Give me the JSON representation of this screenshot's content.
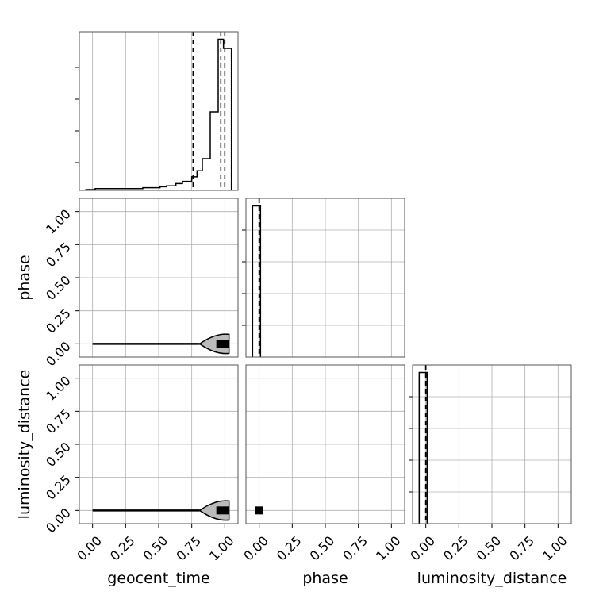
{
  "chart_data": {
    "type": "corner",
    "parameters": [
      "geocent_time",
      "phase",
      "luminosity_distance"
    ],
    "axis_labels": {
      "x": [
        "geocent_time",
        "phase",
        "luminosity_distance"
      ],
      "y": [
        "phase",
        "luminosity_distance"
      ]
    },
    "tick_values": [
      0.0,
      0.25,
      0.5,
      0.75,
      1.0
    ],
    "tick_labels": [
      "0.00",
      "0.25",
      "0.50",
      "0.75",
      "1.00"
    ],
    "xlim": [
      -0.1,
      1.1
    ],
    "ylim": [
      -0.1,
      1.1
    ],
    "grid": true,
    "histograms": [
      {
        "parameter": "geocent_time",
        "bin_edges": [
          -0.05,
          0.02,
          0.38,
          0.51,
          0.56,
          0.63,
          0.68,
          0.75,
          0.79,
          0.83,
          0.89,
          0.95,
          0.99,
          1.05
        ],
        "densities": [
          0.005,
          0.012,
          0.018,
          0.024,
          0.03,
          0.045,
          0.06,
          0.09,
          0.13,
          0.21,
          0.52,
          1.0,
          0.94
        ],
        "quantiles": [
          0.76,
          0.97,
          1.0
        ]
      },
      {
        "parameter": "phase",
        "bin_edges": [
          -0.05,
          0.0,
          0.01
        ],
        "densities": [
          1.0,
          1.0
        ],
        "quantiles": [
          0.0,
          0.0,
          0.0
        ]
      },
      {
        "parameter": "luminosity_distance",
        "bin_edges": [
          -0.05,
          0.0,
          0.01
        ],
        "densities": [
          1.0,
          1.0
        ],
        "quantiles": [
          0.0,
          0.0,
          0.0
        ]
      }
    ],
    "scatter_2d": [
      {
        "x_param": "geocent_time",
        "y_param": "phase",
        "x_range": [
          0.0,
          1.05
        ],
        "y_value": 0.0,
        "density_peak": 1.0
      },
      {
        "x_param": "geocent_time",
        "y_param": "luminosity_distance",
        "x_range": [
          0.0,
          1.05
        ],
        "y_value": 0.0,
        "density_peak": 1.0
      },
      {
        "x_param": "phase",
        "y_param": "luminosity_distance",
        "x": 0.0,
        "y": 0.0
      }
    ]
  }
}
